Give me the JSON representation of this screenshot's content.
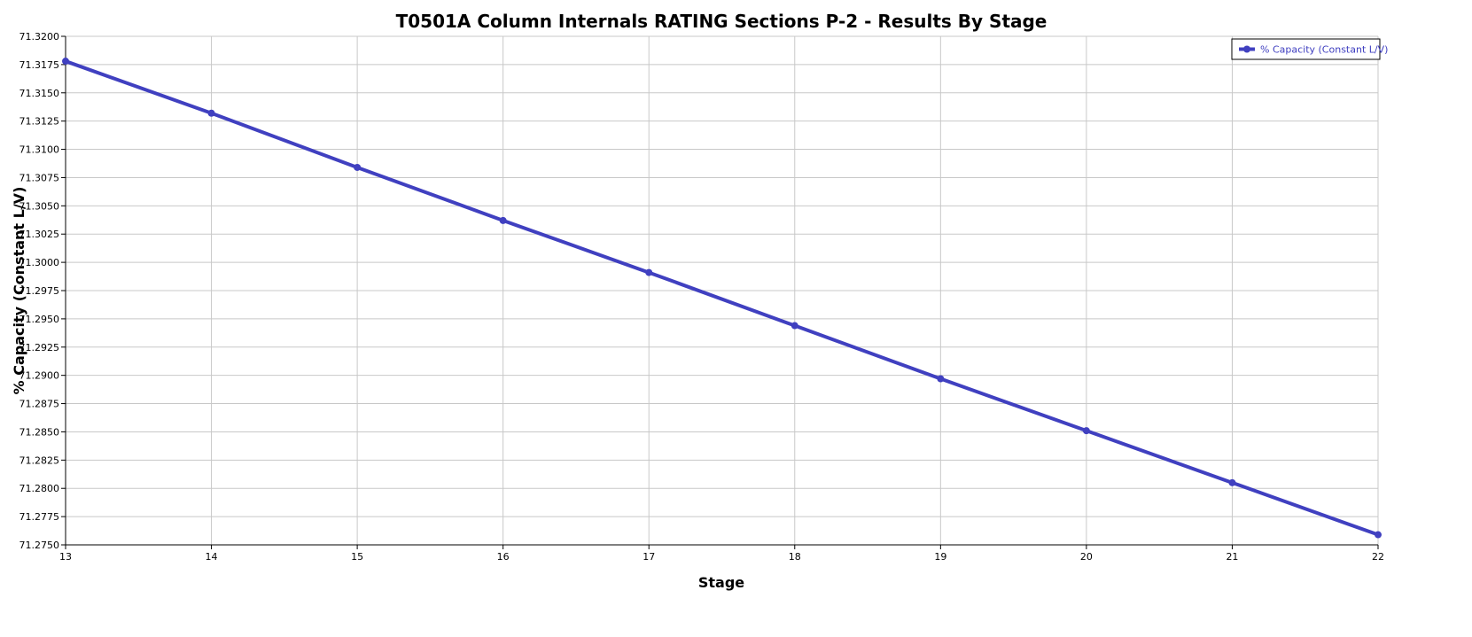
{
  "chart_data": {
    "type": "line",
    "title": "T0501A Column Internals RATING Sections P-2 - Results By Stage",
    "xlabel": "Stage",
    "ylabel": "% Capacity (Constant L/V)",
    "xlim": [
      13,
      22
    ],
    "ylim": [
      71.275,
      71.32
    ],
    "x_ticks": [
      "13",
      "14",
      "15",
      "16",
      "17",
      "18",
      "19",
      "20",
      "21",
      "22"
    ],
    "y_ticks": [
      "71.2750",
      "71.2775",
      "71.2800",
      "71.2825",
      "71.2850",
      "71.2875",
      "71.2900",
      "71.2925",
      "71.2950",
      "71.2975",
      "71.3000",
      "71.3025",
      "71.3050",
      "71.3075",
      "71.3100",
      "71.3125",
      "71.3150",
      "71.3175",
      "71.3200"
    ],
    "grid": true,
    "legend_position": "top-right",
    "series": [
      {
        "name": "% Capacity (Constant L/V)",
        "color": "#4040c0",
        "x": [
          13,
          14,
          15,
          16,
          17,
          18,
          19,
          20,
          21,
          22
        ],
        "values": [
          71.3178,
          71.3132,
          71.3084,
          71.3037,
          71.2991,
          71.2944,
          71.2897,
          71.2851,
          71.2805,
          71.2759
        ]
      }
    ]
  }
}
